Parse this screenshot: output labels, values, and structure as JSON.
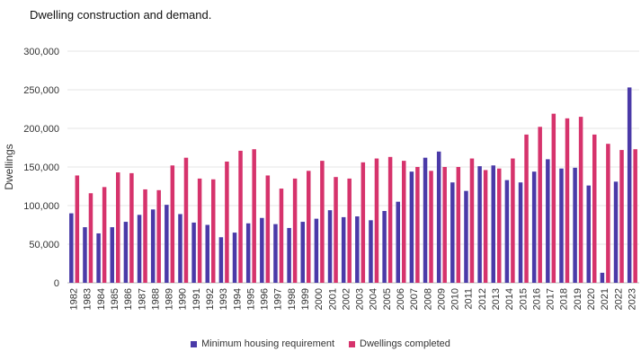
{
  "subtitle": "Dwelling construction and demand.",
  "chart_data": {
    "type": "bar",
    "title": "",
    "ylabel": "Dwellings",
    "xlabel": "",
    "ylim": [
      0,
      300000
    ],
    "yticks": [
      0,
      50000,
      100000,
      150000,
      200000,
      250000,
      300000
    ],
    "ytick_labels": [
      "0",
      "50,000",
      "100,000",
      "150,000",
      "200,000",
      "250,000",
      "300,000"
    ],
    "grid": true,
    "legend_position": "bottom",
    "categories": [
      "1982",
      "1983",
      "1984",
      "1985",
      "1986",
      "1987",
      "1988",
      "1989",
      "1990",
      "1991",
      "1992",
      "1993",
      "1994",
      "1995",
      "1996",
      "1997",
      "1998",
      "1999",
      "2000",
      "2001",
      "2002",
      "2003",
      "2004",
      "2005",
      "2006",
      "2007",
      "2008",
      "2009",
      "2010",
      "2011",
      "2012",
      "2013",
      "2014",
      "2015",
      "2016",
      "2017",
      "2018",
      "2019",
      "2020",
      "2021",
      "2022",
      "2023"
    ],
    "series": [
      {
        "name": "Minimum housing requirement",
        "color": "#4a3aa8",
        "values": [
          90000,
          72000,
          64000,
          72000,
          79000,
          88000,
          95000,
          101000,
          89000,
          78000,
          75000,
          59000,
          65000,
          77000,
          84000,
          76000,
          71000,
          79000,
          83000,
          94000,
          85000,
          86000,
          81000,
          93000,
          105000,
          144000,
          162000,
          170000,
          130000,
          119000,
          151000,
          152000,
          133000,
          130000,
          144000,
          160000,
          148000,
          149000,
          126000,
          13000,
          131000,
          253000
        ]
      },
      {
        "name": "Dwellings completed",
        "color": "#d6336c",
        "values": [
          139000,
          116000,
          124000,
          143000,
          142000,
          121000,
          120000,
          152000,
          162000,
          135000,
          134000,
          157000,
          171000,
          173000,
          139000,
          122000,
          135000,
          145000,
          158000,
          137000,
          135000,
          156000,
          161000,
          163000,
          158000,
          150000,
          145000,
          150000,
          150000,
          161000,
          146000,
          148000,
          161000,
          192000,
          202000,
          219000,
          213000,
          215000,
          192000,
          180000,
          172000,
          173000
        ]
      }
    ]
  }
}
